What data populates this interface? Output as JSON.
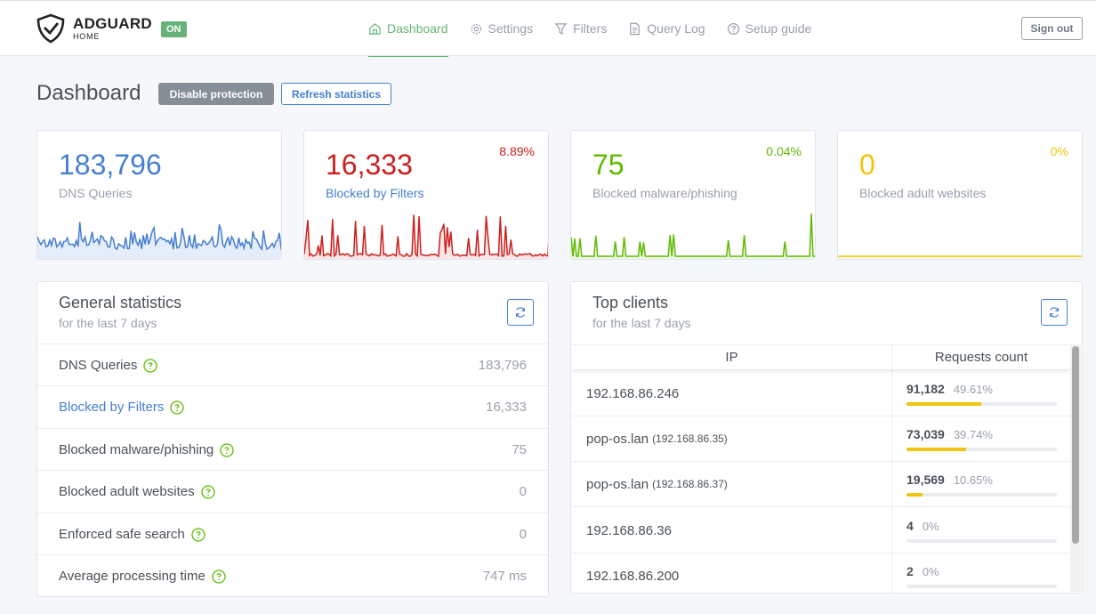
{
  "header": {
    "logo_title": "ADGUARD",
    "logo_sub": "HOME",
    "status_badge": "ON",
    "nav": [
      {
        "label": "Dashboard",
        "icon": "home-icon",
        "active": true
      },
      {
        "label": "Settings",
        "icon": "gear-icon",
        "active": false
      },
      {
        "label": "Filters",
        "icon": "filter-icon",
        "active": false
      },
      {
        "label": "Query Log",
        "icon": "document-icon",
        "active": false
      },
      {
        "label": "Setup guide",
        "icon": "help-circle-icon",
        "active": false
      }
    ],
    "sign_out": "Sign out"
  },
  "page": {
    "title": "Dashboard",
    "disable_protection": "Disable protection",
    "refresh_statistics": "Refresh statistics"
  },
  "cards": [
    {
      "value": "183,796",
      "label": "DNS Queries",
      "percent": "",
      "color": "#467fcf",
      "fill": "#e4edf9"
    },
    {
      "value": "16,333",
      "label": "Blocked by Filters",
      "percent": "8.89%",
      "color": "#cd201f",
      "fill": "#fbe5e5"
    },
    {
      "value": "75",
      "label": "Blocked malware/phishing",
      "percent": "0.04%",
      "color": "#5eba00",
      "fill": "#eef8e4"
    },
    {
      "value": "0",
      "label": "Blocked adult websites",
      "percent": "0%",
      "color": "#f1c40f",
      "fill": "#fdf8e1"
    }
  ],
  "general_statistics": {
    "title": "General statistics",
    "subtitle": "for the last 7 days",
    "rows": [
      {
        "label": "DNS Queries",
        "value": "183,796",
        "link": false
      },
      {
        "label": "Blocked by Filters",
        "value": "16,333",
        "link": true
      },
      {
        "label": "Blocked malware/phishing",
        "value": "75",
        "link": false
      },
      {
        "label": "Blocked adult websites",
        "value": "0",
        "link": false
      },
      {
        "label": "Enforced safe search",
        "value": "0",
        "link": false
      },
      {
        "label": "Average processing time",
        "value": "747 ms",
        "link": false
      }
    ]
  },
  "top_clients": {
    "title": "Top clients",
    "subtitle": "for the last 7 days",
    "col_ip": "IP",
    "col_requests": "Requests count",
    "rows": [
      {
        "name": "192.168.86.246",
        "ip": "",
        "count": "91,182",
        "percent": "49.61%",
        "fraction": 0.4961
      },
      {
        "name": "pop-os.lan",
        "ip": "(192.168.86.35)",
        "count": "73,039",
        "percent": "39.74%",
        "fraction": 0.3974
      },
      {
        "name": "pop-os.lan",
        "ip": "(192.168.86.37)",
        "count": "19,569",
        "percent": "10.65%",
        "fraction": 0.1065
      },
      {
        "name": "192.168.86.36",
        "ip": "",
        "count": "4",
        "percent": "0%",
        "fraction": 0
      },
      {
        "name": "192.168.86.200",
        "ip": "",
        "count": "2",
        "percent": "0%",
        "fraction": 0
      }
    ]
  }
}
